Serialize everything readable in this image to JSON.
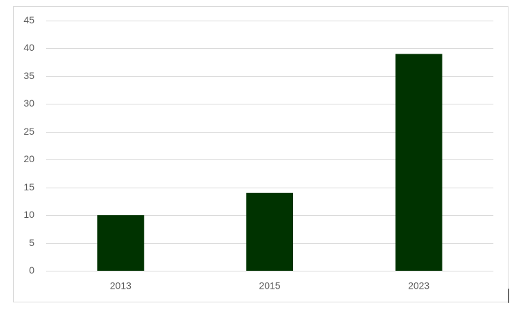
{
  "chart_data": {
    "type": "bar",
    "categories": [
      "2013",
      "2015",
      "2023"
    ],
    "values": [
      10,
      14,
      39
    ],
    "color": "#003300",
    "ylim": [
      0,
      45
    ],
    "yticks": [
      0,
      5,
      10,
      15,
      20,
      25,
      30,
      35,
      40,
      45
    ],
    "grid": true
  }
}
